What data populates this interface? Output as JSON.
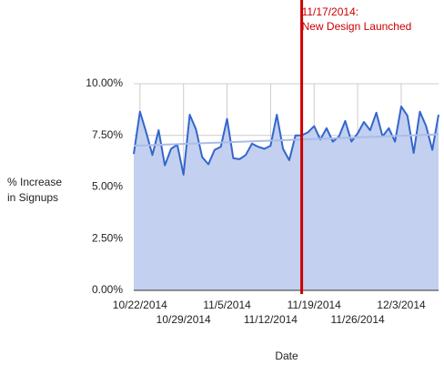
{
  "chart_data": {
    "type": "area",
    "xlabel": "Date",
    "ylabel": [
      "% Increase",
      "in Signups"
    ],
    "annotation": {
      "x": "11/17/2014",
      "text": [
        "11/17/2014:",
        "New Design Launched"
      ],
      "color": "#cc0000"
    },
    "x": [
      "10/21/2014",
      "10/22/2014",
      "10/23/2014",
      "10/24/2014",
      "10/25/2014",
      "10/26/2014",
      "10/27/2014",
      "10/28/2014",
      "10/29/2014",
      "10/30/2014",
      "10/31/2014",
      "11/1/2014",
      "11/2/2014",
      "11/3/2014",
      "11/4/2014",
      "11/5/2014",
      "11/6/2014",
      "11/7/2014",
      "11/8/2014",
      "11/9/2014",
      "11/10/2014",
      "11/11/2014",
      "11/12/2014",
      "11/13/2014",
      "11/14/2014",
      "11/15/2014",
      "11/16/2014",
      "11/17/2014",
      "11/18/2014",
      "11/19/2014",
      "11/20/2014",
      "11/21/2014",
      "11/22/2014",
      "11/23/2014",
      "11/24/2014",
      "11/25/2014",
      "11/26/2014",
      "11/27/2014",
      "11/28/2014",
      "11/29/2014",
      "11/30/2014",
      "12/1/2014",
      "12/2/2014",
      "12/3/2014",
      "12/4/2014",
      "12/5/2014",
      "12/6/2014",
      "12/7/2014",
      "12/8/2014",
      "12/9/2014"
    ],
    "series": [
      {
        "color": "#3366cc",
        "fill": "#c3d0ef",
        "values": [
          6.6,
          8.65,
          7.65,
          6.55,
          7.75,
          6.05,
          6.85,
          7.05,
          5.6,
          8.5,
          7.8,
          6.45,
          6.1,
          6.8,
          6.95,
          8.3,
          6.4,
          6.35,
          6.55,
          7.1,
          6.95,
          6.85,
          7.0,
          8.5,
          6.85,
          6.3,
          7.5,
          7.5,
          7.65,
          7.95,
          7.3,
          7.85,
          7.2,
          7.45,
          8.2,
          7.2,
          7.6,
          8.15,
          7.75,
          8.6,
          7.45,
          7.85,
          7.2,
          8.9,
          8.45,
          6.65,
          8.65,
          7.95,
          6.8,
          8.5
        ]
      }
    ],
    "trend": {
      "x": [
        "10/21/2014",
        "12/9/2014"
      ],
      "values": [
        7.0,
        7.55
      ],
      "color": "#a9bde9"
    },
    "xlim": [
      "10/21/2014",
      "12/9/2014"
    ],
    "xticks": [
      "10/22/2014",
      "10/29/2014",
      "11/5/2014",
      "11/12/2014",
      "11/19/2014",
      "11/26/2014",
      "12/3/2014"
    ],
    "ylim": [
      0,
      10
    ],
    "yticks": [
      {
        "value": 0,
        "label": "0.00%"
      },
      {
        "value": 2.5,
        "label": "2.50%"
      },
      {
        "value": 5,
        "label": "5.00%"
      },
      {
        "value": 7.5,
        "label": "7.50%"
      },
      {
        "value": 10,
        "label": "10.00%"
      }
    ],
    "grid": true
  }
}
